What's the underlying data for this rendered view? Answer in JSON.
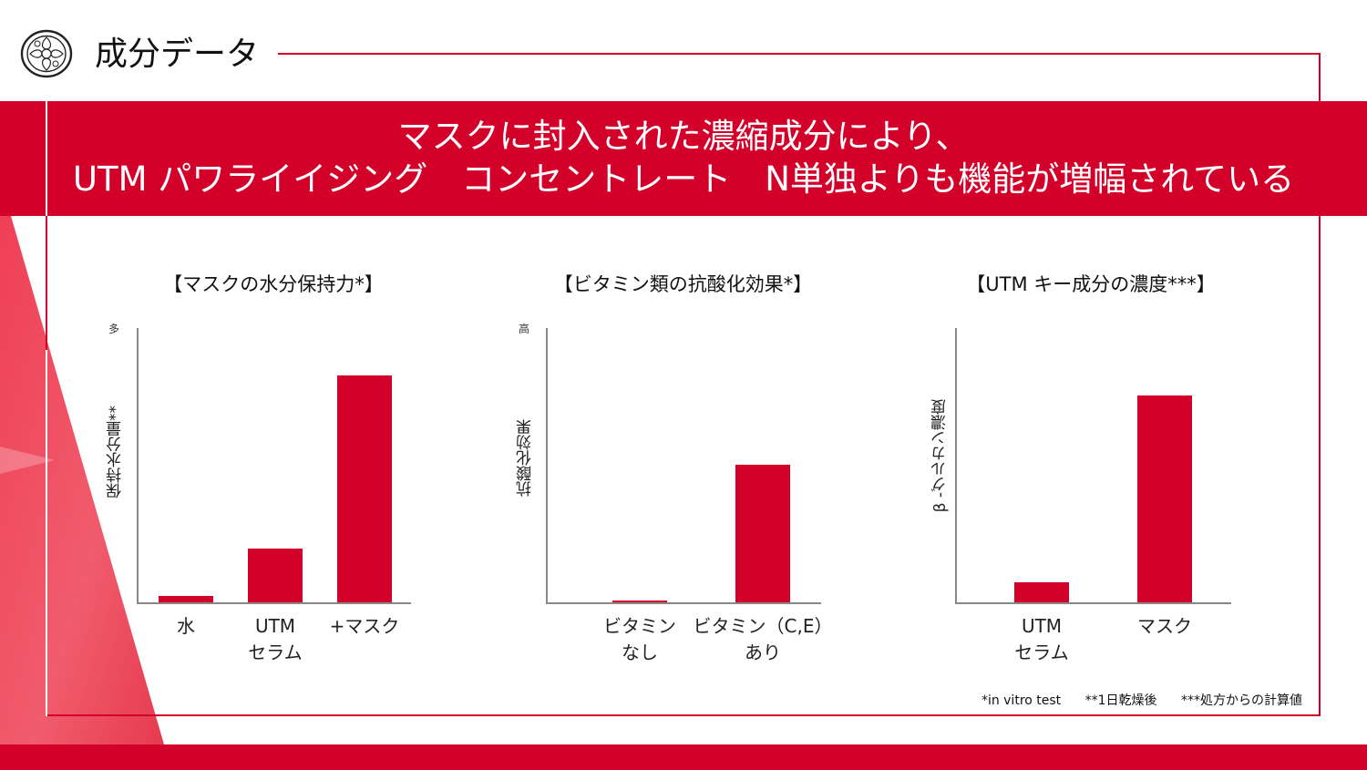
{
  "header": {
    "title": "成分データ",
    "logo_icon": "camellia-logo-icon"
  },
  "banner": {
    "line1": "マスクに封入された濃縮成分により、",
    "line2": "UTM パワライイジング　コンセントレート　N単独よりも機能が増幅されている"
  },
  "colors": {
    "accent": "#d3002a",
    "axis": "#888888",
    "background": "#ffffff"
  },
  "chart_data": [
    {
      "type": "bar",
      "title": "【マスクの水分保持力*】",
      "ylabel": "保持水分量**",
      "ymax_label": "多",
      "categories": [
        [
          "水"
        ],
        [
          "UTM",
          "セラム"
        ],
        [
          "+マスク"
        ]
      ],
      "values": [
        2.3,
        19.7,
        82.7
      ],
      "ylim": [
        0,
        100
      ],
      "grid": false
    },
    {
      "type": "bar",
      "title": "【ビタミン類の抗酸化効果*】",
      "ylabel": "抗酸化効果",
      "ymax_label": "高",
      "categories": [
        [
          "ビタミン",
          "なし"
        ],
        [
          "ビタミン（C,E）",
          "あり"
        ]
      ],
      "values": [
        0.7,
        50.3
      ],
      "ylim": [
        0,
        100
      ],
      "grid": false
    },
    {
      "type": "bar",
      "title": "【UTM キー成分の濃度***】",
      "ylabel": "β -グルカン濃度",
      "ymax_label": "",
      "categories": [
        [
          "UTM",
          "セラム"
        ],
        [
          "マスク"
        ]
      ],
      "values": [
        7.3,
        75.3
      ],
      "ylim": [
        0,
        100
      ],
      "grid": false
    }
  ],
  "footnotes": [
    "*in vitro test",
    "**1日乾燥後",
    "***処方からの計算値"
  ]
}
